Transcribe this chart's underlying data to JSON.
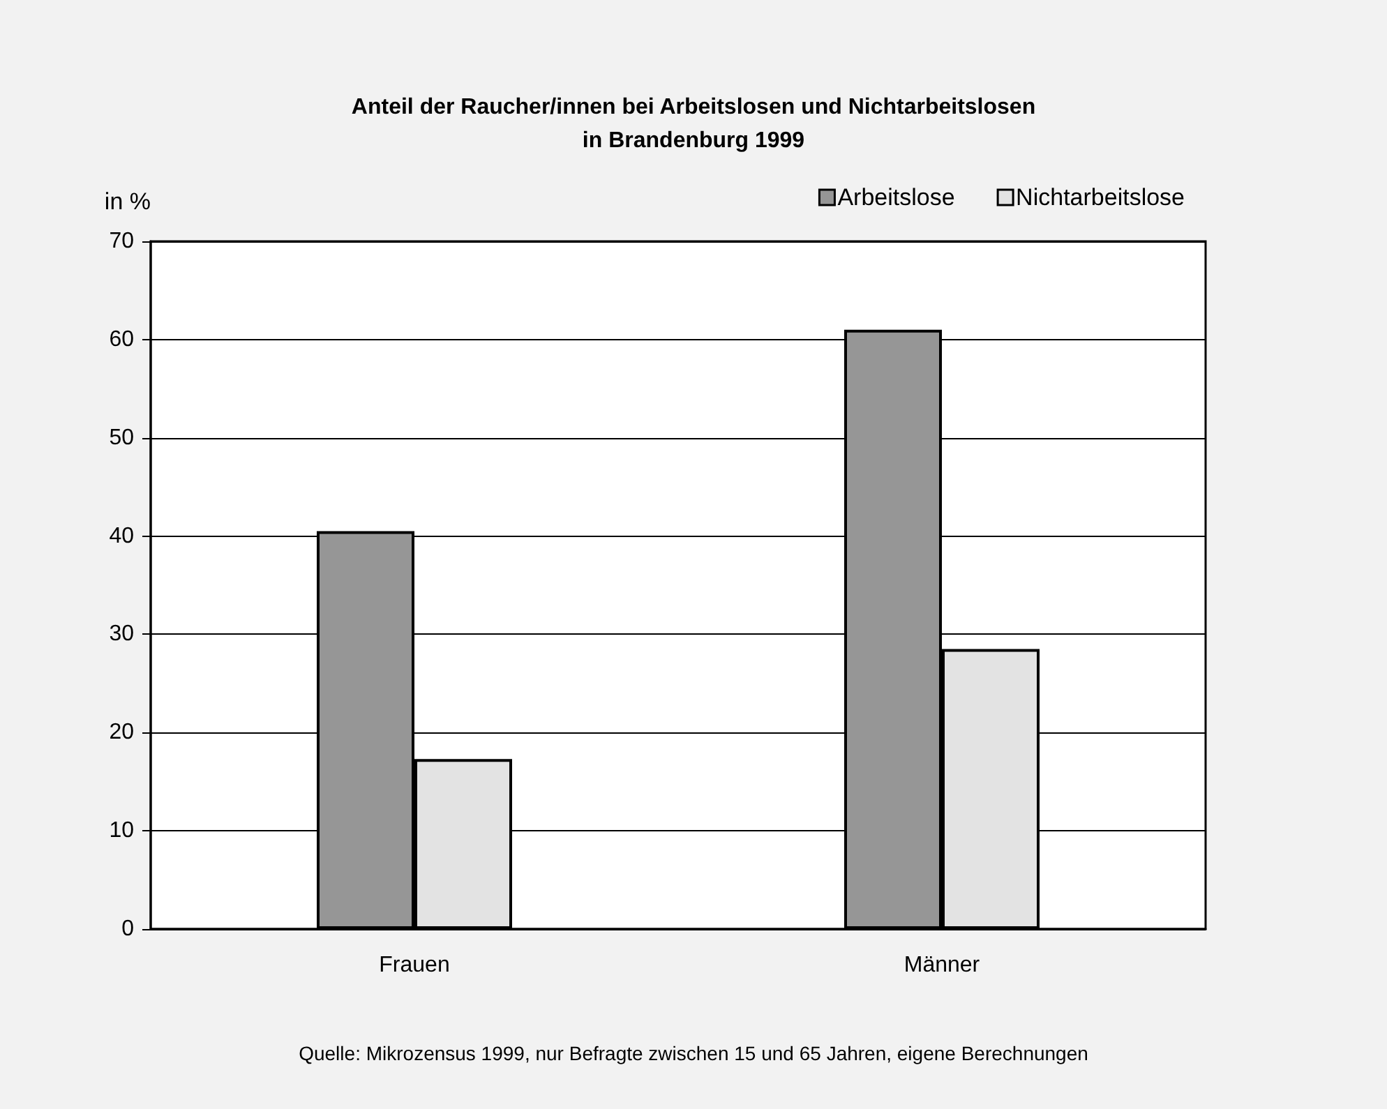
{
  "chart_data": {
    "type": "bar",
    "title": "Anteil der Raucher/innen bei Arbeitslosen und Nichtarbeitslosen\nin Brandenburg 1999",
    "ylabel": "in %",
    "categories": [
      "Frauen",
      "Männer"
    ],
    "series": [
      {
        "name": "Arbeitslose",
        "color": "#969696",
        "values": [
          40.5,
          61
        ]
      },
      {
        "name": "Nichtarbeitslose",
        "color": "#e3e3e3",
        "values": [
          17.3,
          28.5
        ]
      }
    ],
    "ylim": [
      0,
      70
    ],
    "yticks": [
      0,
      10,
      20,
      30,
      40,
      50,
      60,
      70
    ],
    "grid": "y",
    "legend": "top right",
    "annotations": [
      "Quelle: Mikrozensus 1999, nur Befragte zwischen 15 und 65 Jahren, eigene Berechnungen"
    ]
  }
}
